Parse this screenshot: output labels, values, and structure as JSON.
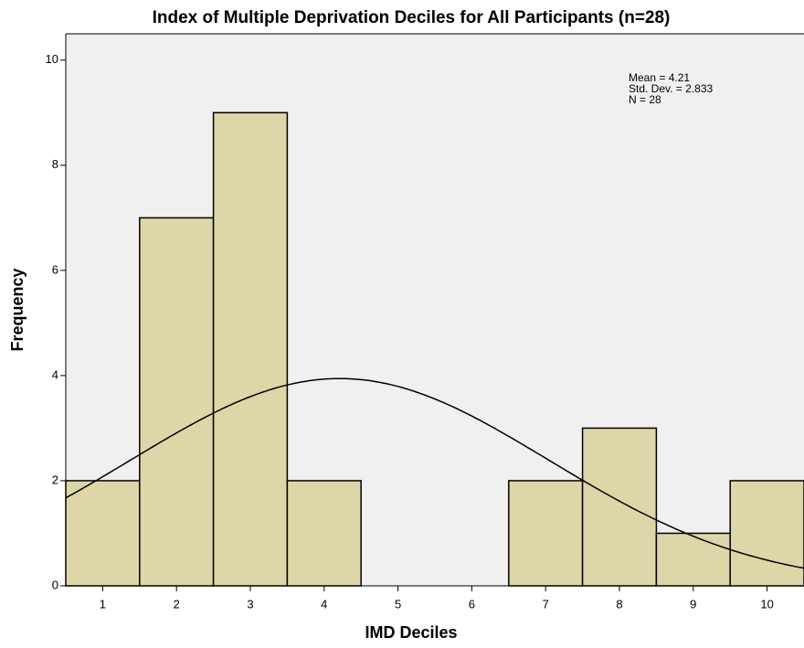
{
  "chart_data": {
    "type": "histogram",
    "title": "Index of Multiple Deprivation Deciles for All Participants (n=28)",
    "x_label": "IMD Deciles",
    "y_label": "Frequency",
    "bins": [
      0.5,
      1.5,
      2.5,
      3.5,
      4.5,
      5.5,
      6.5,
      7.5,
      8.5,
      9.5,
      10.5
    ],
    "values": [
      2,
      7,
      9,
      2,
      0,
      0,
      2,
      3,
      1,
      2
    ],
    "color": "#ddd6a9",
    "xlim": [
      0.5,
      10.5
    ],
    "xticks": [
      1,
      2,
      3,
      4,
      5,
      6,
      7,
      8,
      9,
      10
    ],
    "ylim": [
      0,
      10.5
    ],
    "yticks": [
      0,
      2,
      4,
      6,
      8,
      10
    ],
    "annotations": [
      "Mean = 4.21",
      "Std. Dev. = 2.833",
      "N = 28"
    ],
    "normal_curve": {
      "mean": 4.21,
      "std_dev": 2.833,
      "n": 28
    }
  }
}
